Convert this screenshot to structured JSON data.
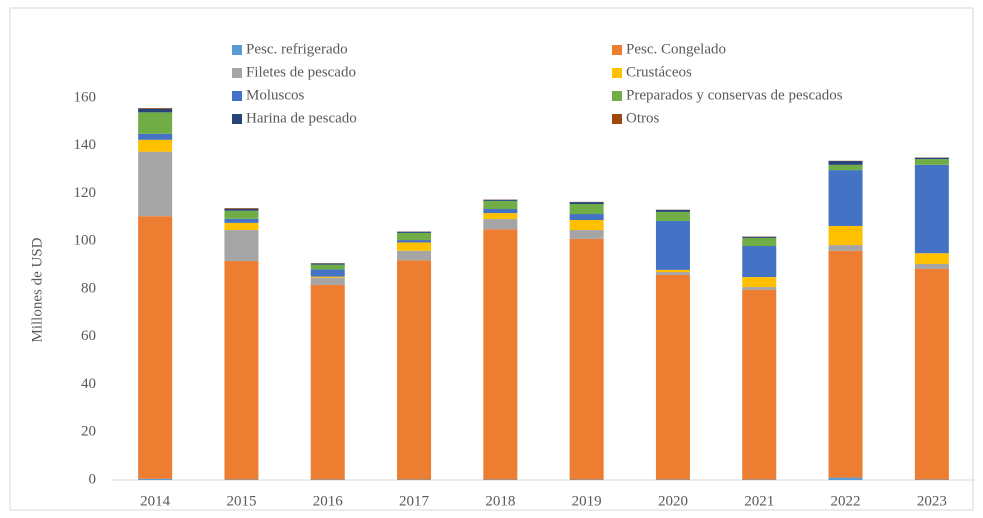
{
  "chart_data": {
    "type": "stacked_bar",
    "y_label": "Millones de USD",
    "categories": [
      "2014",
      "2015",
      "2016",
      "2017",
      "2018",
      "2019",
      "2020",
      "2021",
      "2022",
      "2023"
    ],
    "series": [
      {
        "name": "Pesc. refrigerado",
        "color": "#5b9bd5",
        "values": [
          0.5,
          0.2,
          0.2,
          0.2,
          0.2,
          0.2,
          0.2,
          0.2,
          1,
          0.2
        ]
      },
      {
        "name": "Pesc. Congelado",
        "color": "#ed7d31",
        "values": [
          110,
          91.5,
          81.5,
          91.8,
          104.8,
          100.8,
          85.7,
          79.4,
          95,
          88.2
        ]
      },
      {
        "name": "Filetes de pescado",
        "color": "#a5a5a5",
        "values": [
          27,
          13,
          3,
          4,
          4.3,
          3.7,
          1.2,
          1.2,
          2.4,
          2.1
        ]
      },
      {
        "name": "Crustáceos",
        "color": "#ffc000",
        "values": [
          5,
          3,
          0.5,
          3.5,
          2.5,
          4.2,
          0.9,
          4.2,
          8,
          4.5
        ]
      },
      {
        "name": "Moluscos",
        "color": "#4472c4",
        "values": [
          2.5,
          1.7,
          3,
          1,
          1.7,
          2.5,
          20.5,
          13,
          23.4,
          37
        ]
      },
      {
        "name": "Preparados y conservas de pescados",
        "color": "#70ad47",
        "values": [
          9,
          3.4,
          2,
          3,
          3.4,
          4.2,
          3.8,
          3.4,
          2.2,
          2.4
        ]
      },
      {
        "name": "Harina de pescado",
        "color": "#264478",
        "values": [
          1.5,
          0.8,
          0.5,
          0.5,
          0.5,
          0.8,
          0.8,
          0.5,
          1.6,
          0.6
        ]
      },
      {
        "name": "Otros",
        "color": "#9e480e",
        "values": [
          0.3,
          0.3,
          0.1,
          0.1,
          0.1,
          0.1,
          0.1,
          0.1,
          0.1,
          0.1
        ]
      }
    ],
    "ylim": [
      0,
      160
    ],
    "yticks": [
      0,
      20,
      40,
      60,
      80,
      100,
      120,
      140,
      160
    ],
    "grid": false
  }
}
